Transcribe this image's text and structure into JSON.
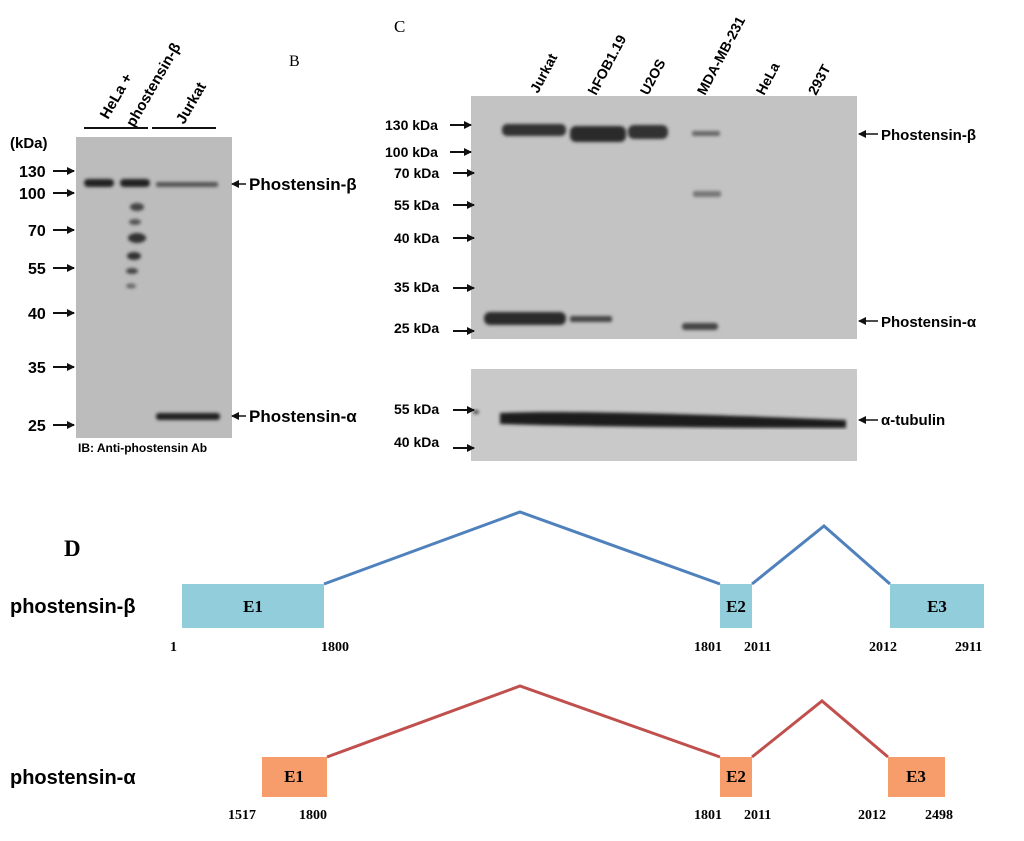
{
  "panel_b": {
    "label": "B",
    "lane_groups": [
      "HeLa +",
      "phostensin-β",
      "Jurkat"
    ],
    "kda_unit": "(kDa)",
    "markers": [
      "130",
      "100",
      "70",
      "55",
      "40",
      "35",
      "25"
    ],
    "band_labels": [
      "Phostensin-β",
      "Phostensin-α"
    ],
    "footer": "IB: Anti-phostensin Ab"
  },
  "panel_c": {
    "label": "C",
    "lanes": [
      "Jurkat",
      "hFOB1.19",
      "U2OS",
      "MDA-MB-231",
      "HeLa",
      "293T"
    ],
    "markers_top": [
      "130 kDa",
      "100 kDa",
      "70 kDa",
      "55 kDa",
      "40 kDa",
      "35 kDa",
      "25 kDa"
    ],
    "markers_bottom": [
      "55 kDa",
      "40 kDa"
    ],
    "band_labels": [
      "Phostensin-β",
      "Phostensin-α",
      "α-tubulin"
    ]
  },
  "panel_d": {
    "label": "D",
    "beta": {
      "name": "phostensin-β",
      "exons": [
        "E1",
        "E2",
        "E3"
      ],
      "positions": [
        "1",
        "1800",
        "1801",
        "2011",
        "2012",
        "2911"
      ]
    },
    "alpha": {
      "name": "phostensin-α",
      "exons": [
        "E1",
        "E2",
        "E3"
      ],
      "positions": [
        "1517",
        "1800",
        "1801",
        "2011",
        "2012",
        "2498"
      ]
    }
  },
  "colors": {
    "beta_exon": "#92cddc",
    "beta_line": "#4f81bd",
    "alpha_exon": "#f79d6b",
    "alpha_line": "#c0504d",
    "blot_bg": "#bdbdbd",
    "band": "#262626"
  }
}
